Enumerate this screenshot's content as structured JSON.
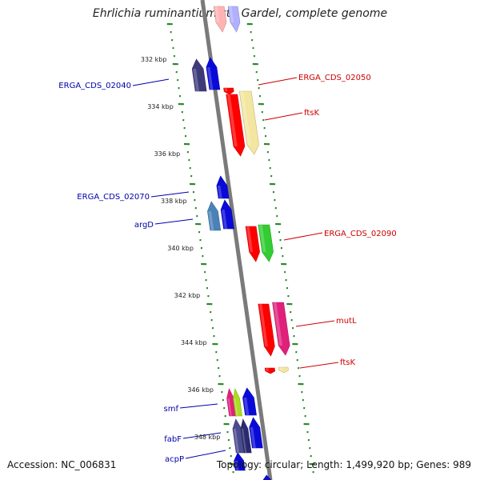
{
  "title": "Ehrlichia ruminantium str. Gardel, complete genome",
  "footer": {
    "accession": "Accession: NC_006831",
    "summary": "Topology: circular; Length: 1,499,920 bp; Genes: 989"
  },
  "scale_labels": [
    "332 kbp",
    "334 kbp",
    "336 kbp",
    "338 kbp",
    "340 kbp",
    "342 kbp",
    "344 kbp",
    "346 kbp",
    "348 kbp"
  ],
  "gene_labels": [
    {
      "text": "ERGA_CDS_02040",
      "color": "#0000aa"
    },
    {
      "text": "ERGA_CDS_02050",
      "color": "#cc0000"
    },
    {
      "text": "ftsK",
      "color": "#cc0000"
    },
    {
      "text": "ERGA_CDS_02070",
      "color": "#0000aa"
    },
    {
      "text": "argD",
      "color": "#0000aa"
    },
    {
      "text": "ERGA_CDS_02090",
      "color": "#cc0000"
    },
    {
      "text": "mutL",
      "color": "#cc0000"
    },
    {
      "text": "ftsK",
      "color": "#cc0000"
    },
    {
      "text": "smf",
      "color": "#0000aa"
    },
    {
      "text": "fabF",
      "color": "#0000aa"
    },
    {
      "text": "acpP",
      "color": "#0000aa"
    }
  ],
  "colors": {
    "backbone": "#7a7a7a",
    "tick_dots": "#228b22",
    "forward_label": "#cc0000",
    "reverse_label": "#0000aa"
  }
}
